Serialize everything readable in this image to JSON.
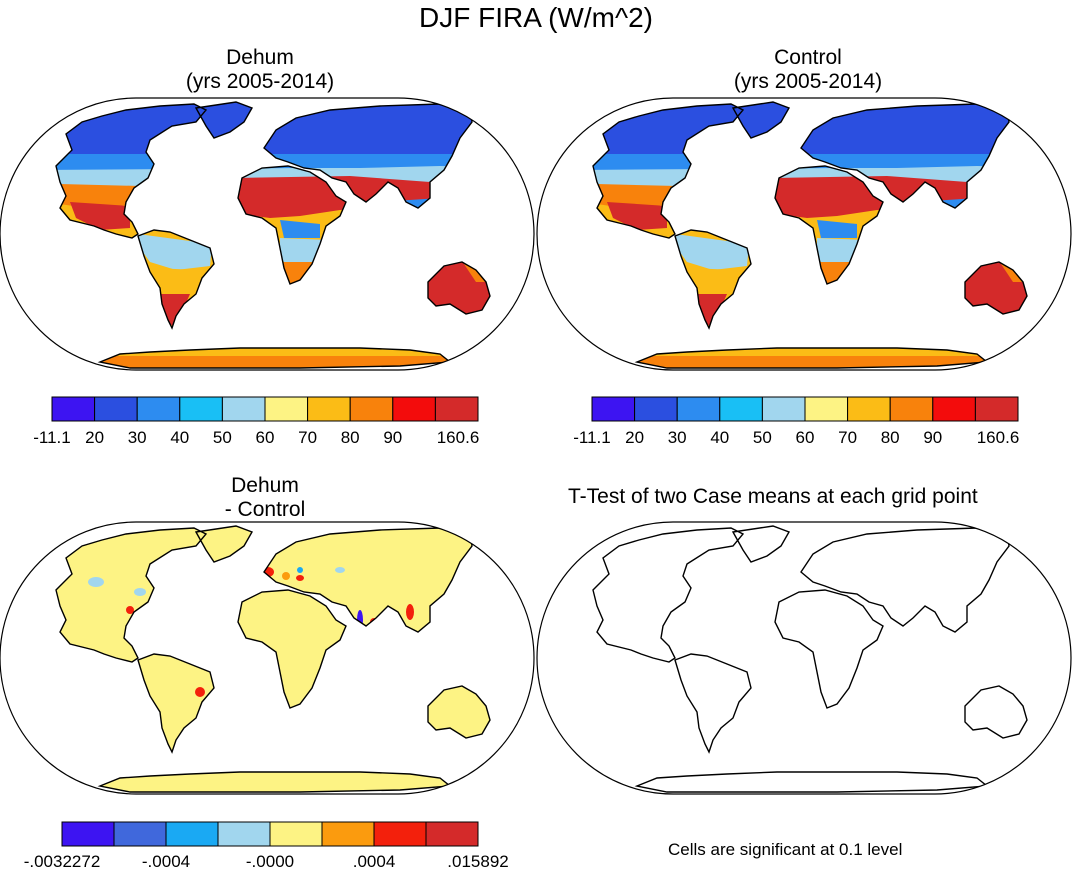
{
  "figure_title": "DJF FIRA (W/m^2)",
  "panels": {
    "dehum": {
      "title_line1": "Dehum",
      "title_line2": "(yrs 2005-2014)"
    },
    "control": {
      "title_line1": "Control",
      "title_line2": "(yrs 2005-2014)"
    },
    "diff": {
      "title_line1": "Dehum",
      "title_line2": "- Control"
    },
    "ttest": {
      "title": "T-Test of two Case means at each grid point",
      "note": "Cells are significant at 0.1 level"
    }
  },
  "colorbar_main": {
    "colors": [
      "#3d14f2",
      "#2b4fe0",
      "#2d8cf0",
      "#19bff5",
      "#a1d6ee",
      "#fdf384",
      "#fbbc16",
      "#f8820c",
      "#f30c0c",
      "#d42a2a"
    ],
    "labels": [
      "-11.1",
      "20",
      "30",
      "40",
      "50",
      "60",
      "70",
      "80",
      "90",
      "160.6"
    ]
  },
  "colorbar_diff": {
    "colors": [
      "#3d14f2",
      "#4068dc",
      "#1aa9f3",
      "#a1d6ee",
      "#fdf384",
      "#fb9b0e",
      "#f3200c",
      "#d42a2a"
    ],
    "labels": [
      "-.0032272",
      "-.0004",
      "-.0000",
      ".0004",
      ".015892"
    ]
  },
  "map_colors": {
    "ocean": "#ffffff",
    "outline": "#000000",
    "cold": "#2b4fe0",
    "cool": "#2d8cf0",
    "mild": "#a1d6ee",
    "warm": "#fbbc16",
    "hot": "#f8820c",
    "very_hot": "#d42a2a",
    "diff_base": "#fdf384"
  }
}
